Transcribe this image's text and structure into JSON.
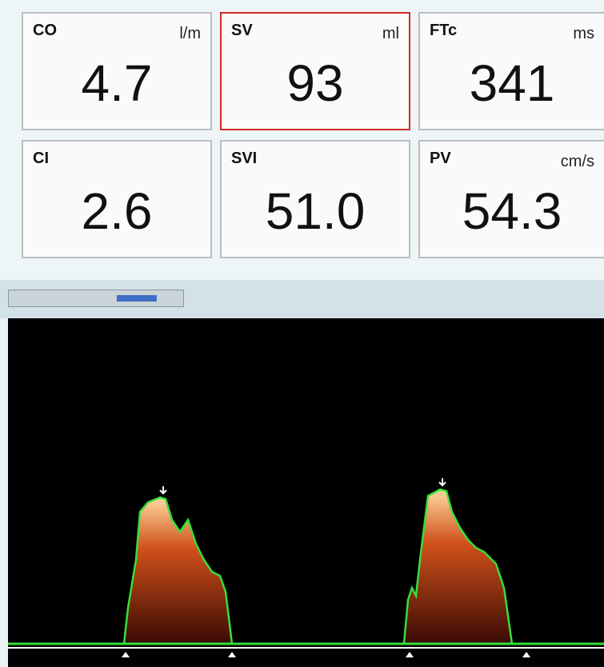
{
  "tiles": [
    {
      "label": "CO",
      "unit": "l/m",
      "value": "4.7"
    },
    {
      "label": "SV",
      "unit": "ml",
      "value": "93"
    },
    {
      "label": "FTc",
      "unit": "ms",
      "value": "341"
    },
    {
      "label": "CI",
      "value": "2.6"
    },
    {
      "label": "SVI",
      "value": "51.0"
    },
    {
      "label": "PV",
      "unit": "cm/s",
      "value": "54.3"
    }
  ]
}
